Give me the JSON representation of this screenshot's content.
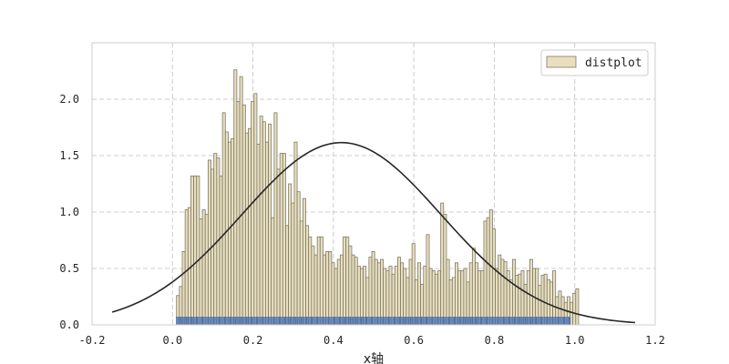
{
  "chart_data": {
    "type": "bar",
    "title": "",
    "xlabel": "x轴",
    "ylabel": "",
    "xlim": [
      -0.2,
      1.2
    ],
    "ylim": [
      0,
      2.5
    ],
    "xticks": [
      "-0.2",
      "0.0",
      "0.2",
      "0.4",
      "0.6",
      "0.8",
      "1.0",
      "1.2"
    ],
    "yticks": [
      "0.0",
      "0.5",
      "1.0",
      "1.5",
      "2.0"
    ],
    "grid": true,
    "legend": {
      "position": "top-right",
      "entries": [
        "distplot"
      ]
    },
    "colors": {
      "bar_fill": "#e8dfc0",
      "bar_edge": "#7f7a65",
      "kde": "#262626",
      "rug": "#4c72b0",
      "grid": "#cccccc"
    },
    "histogram": {
      "name": "distplot",
      "x_start": 0.01,
      "bin_width": 0.01,
      "values": [
        0.26,
        0.34,
        0.65,
        1.02,
        1.04,
        1.32,
        1.32,
        1.32,
        0.94,
        1.02,
        0.98,
        1.46,
        1.38,
        1.52,
        1.48,
        1.32,
        1.88,
        1.71,
        1.62,
        1.65,
        2.26,
        1.98,
        2.2,
        1.95,
        1.7,
        1.74,
        1.98,
        2.05,
        1.6,
        1.85,
        1.8,
        1.62,
        1.78,
        0.95,
        1.88,
        1.38,
        1.52,
        1.52,
        0.88,
        1.25,
        1.08,
        1.62,
        1.18,
        0.92,
        1.12,
        0.88,
        0.78,
        0.7,
        0.62,
        0.78,
        0.78,
        0.62,
        0.65,
        0.65,
        0.55,
        0.5,
        0.58,
        0.62,
        0.78,
        0.78,
        0.7,
        0.62,
        0.6,
        0.52,
        0.5,
        0.52,
        0.42,
        0.6,
        0.65,
        0.58,
        0.55,
        0.58,
        0.5,
        0.48,
        0.52,
        0.45,
        0.52,
        0.6,
        0.55,
        0.5,
        0.42,
        0.58,
        0.72,
        0.4,
        0.55,
        0.36,
        0.52,
        0.8,
        0.5,
        0.48,
        0.45,
        0.48,
        1.08,
        0.98,
        0.58,
        0.4,
        0.42,
        0.55,
        0.48,
        0.48,
        0.5,
        0.38,
        0.55,
        0.68,
        0.55,
        0.48,
        0.48,
        0.92,
        0.95,
        1.02,
        0.85,
        0.5,
        0.62,
        0.58,
        0.56,
        0.48,
        0.4,
        0.58,
        0.44,
        0.45,
        0.48,
        0.36,
        0.48,
        0.58,
        0.5,
        0.5,
        0.35,
        0.44,
        0.45,
        0.4,
        0.38,
        0.48,
        0.25,
        0.3,
        0.25,
        0.2,
        0.25,
        0.2,
        0.28,
        0.32
      ]
    },
    "kde": {
      "mean": 0.42,
      "std": 0.247,
      "x_range": [
        -0.15,
        1.15
      ]
    },
    "rug": {
      "x_range": [
        0.01,
        0.99
      ]
    }
  }
}
